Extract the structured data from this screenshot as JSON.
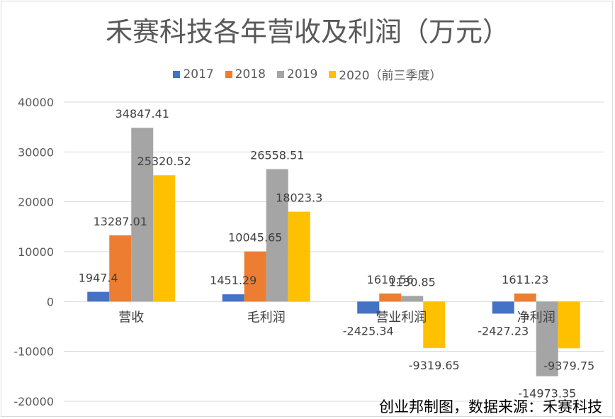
{
  "chart_data": {
    "type": "bar",
    "title": "禾赛科技各年营收及利润（万元）",
    "categories": [
      "营收",
      "毛利润",
      "营业利润",
      "净利润"
    ],
    "series": [
      {
        "name": "2017",
        "color": "#4472c4",
        "values": [
          1947.4,
          1451.29,
          -2425.34,
          -2427.23
        ],
        "labels": [
          "1947.4",
          "1451.29",
          "-2425.34",
          "-2427.23"
        ]
      },
      {
        "name": "2018",
        "color": "#ed7d31",
        "values": [
          13287.01,
          10045.65,
          1610.56,
          1611.23
        ],
        "labels": [
          "13287.01",
          "10045.65",
          "1610.56",
          "1611.23"
        ]
      },
      {
        "name": "2019",
        "color": "#a5a5a5",
        "values": [
          34847.41,
          26558.51,
          1130.85,
          -14973.35
        ],
        "labels": [
          "34847.41",
          "26558.51",
          "1130.85",
          "-14973.35"
        ]
      },
      {
        "name": "2020（前三季度）",
        "color": "#ffc000",
        "values": [
          25320.52,
          18023.3,
          -9319.65,
          -9379.75
        ],
        "labels": [
          "25320.52",
          "18023.3",
          "-9319.65",
          "-9379.75"
        ]
      }
    ],
    "yticks": [
      "40000",
      "30000",
      "20000",
      "10000",
      "0",
      "-10000",
      "-20000"
    ],
    "ylim": [
      -20000,
      40000
    ],
    "grid": true,
    "legend": "top"
  },
  "source_note": "创业邦制图，数据来源：禾赛科技"
}
